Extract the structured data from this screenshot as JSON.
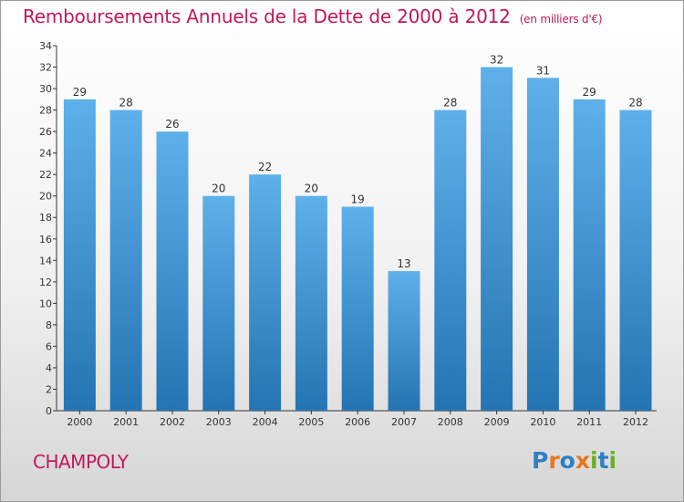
{
  "header": {
    "title": "Remboursements Annuels de la Dette de 2000 à 2012",
    "unit": "(en milliers d'€)"
  },
  "footer": {
    "town": "CHAMPOLY",
    "logo_letters": [
      {
        "char": "P",
        "color": "#2e7fc4"
      },
      {
        "char": "r",
        "color": "#e8771a"
      },
      {
        "char": "o",
        "color": "#2e7fc4"
      },
      {
        "char": "x",
        "color": "#e8771a"
      },
      {
        "char": "i",
        "color": "#6ab023"
      },
      {
        "char": "t",
        "color": "#2e7fc4"
      },
      {
        "char": "i",
        "color": "#6ab023"
      }
    ]
  },
  "colors": {
    "bar_light": "#5eb0ea",
    "bar_dark": "#2474b3",
    "title": "#c2185b",
    "axis": "#333333"
  },
  "chart_data": {
    "type": "bar",
    "categories": [
      "2000",
      "2001",
      "2002",
      "2003",
      "2004",
      "2005",
      "2006",
      "2007",
      "2008",
      "2009",
      "2010",
      "2011",
      "2012"
    ],
    "values": [
      29,
      28,
      26,
      20,
      22,
      20,
      19,
      13,
      28,
      32,
      31,
      29,
      28
    ],
    "ylim": [
      0,
      34
    ],
    "yticks": [
      0,
      2,
      4,
      6,
      8,
      10,
      12,
      14,
      16,
      18,
      20,
      22,
      24,
      26,
      28,
      30,
      32,
      34
    ],
    "grid": false,
    "data_labels": true
  }
}
